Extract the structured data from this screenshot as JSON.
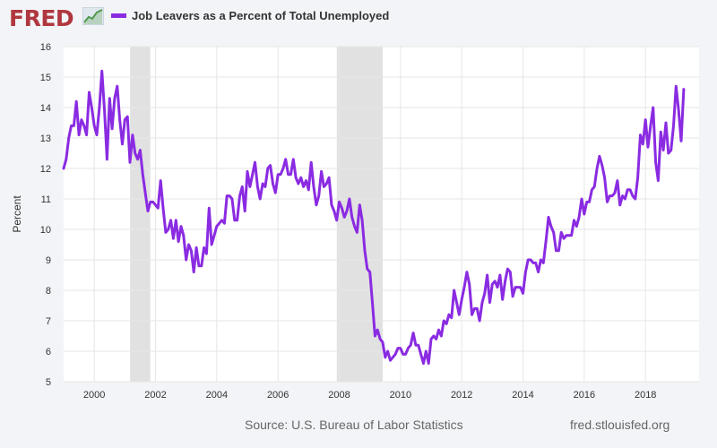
{
  "brand": {
    "logo_text": "FRED"
  },
  "colors": {
    "series": "#8a2be2",
    "recession": "#e1e1e1",
    "grid": "#e6e6e6",
    "plot_bg": "#ffffff"
  },
  "footer": {
    "source": "Source: U.S. Bureau of Labor Statistics",
    "url": "fred.stlouisfed.org"
  },
  "chart_data": {
    "type": "line",
    "title": "Job Leavers as a Percent of Total Unemployed",
    "xlabel": "",
    "ylabel": "Percent",
    "xlim": [
      1999.0,
      2019.75
    ],
    "ylim": [
      5,
      16
    ],
    "x_ticks": [
      2000,
      2002,
      2004,
      2006,
      2008,
      2010,
      2012,
      2014,
      2016,
      2018
    ],
    "y_ticks": [
      5,
      6,
      7,
      8,
      9,
      10,
      11,
      12,
      13,
      14,
      15,
      16
    ],
    "grid": true,
    "recessions": [
      [
        2001.17,
        2001.83
      ],
      [
        2007.92,
        2009.42
      ]
    ],
    "series": [
      {
        "name": "Job Leavers as a Percent of Total Unemployed",
        "start_year": 1999.0,
        "step": 0.08333,
        "values": [
          12.0,
          12.3,
          13.0,
          13.4,
          13.4,
          14.2,
          13.1,
          13.6,
          13.4,
          13.1,
          14.5,
          14.0,
          13.4,
          13.1,
          14.0,
          15.2,
          13.9,
          12.3,
          14.3,
          13.3,
          14.3,
          14.7,
          13.6,
          12.8,
          13.6,
          13.7,
          12.2,
          13.1,
          12.5,
          12.3,
          12.6,
          11.8,
          11.2,
          10.6,
          10.9,
          10.9,
          10.8,
          10.7,
          11.6,
          10.7,
          9.9,
          10.0,
          10.3,
          9.7,
          10.3,
          9.6,
          10.1,
          9.8,
          9.0,
          9.5,
          9.3,
          8.6,
          9.4,
          8.8,
          8.8,
          9.4,
          9.2,
          10.7,
          9.5,
          9.8,
          10.1,
          10.2,
          10.3,
          10.2,
          11.1,
          11.1,
          11.0,
          10.3,
          10.3,
          11.1,
          11.4,
          10.6,
          11.9,
          11.4,
          11.8,
          12.2,
          11.4,
          11.0,
          11.5,
          11.4,
          12.0,
          12.1,
          11.5,
          11.2,
          11.8,
          11.8,
          12.0,
          12.3,
          11.8,
          11.8,
          12.3,
          11.7,
          11.5,
          11.7,
          11.4,
          11.6,
          11.3,
          12.2,
          11.4,
          10.8,
          11.1,
          11.9,
          11.4,
          11.5,
          11.7,
          10.8,
          10.6,
          10.3,
          10.9,
          10.7,
          10.4,
          10.6,
          11.0,
          10.4,
          10.1,
          9.9,
          10.8,
          10.3,
          9.3,
          8.7,
          8.6,
          7.6,
          6.5,
          6.7,
          6.4,
          6.3,
          5.8,
          6.0,
          5.7,
          5.8,
          5.9,
          6.1,
          6.1,
          5.9,
          5.9,
          6.1,
          6.2,
          6.6,
          6.2,
          6.2,
          5.9,
          5.6,
          6.0,
          5.6,
          6.4,
          6.5,
          6.4,
          6.7,
          6.5,
          7.0,
          6.9,
          7.2,
          7.1,
          8.0,
          7.6,
          7.2,
          7.7,
          8.1,
          8.6,
          8.2,
          7.2,
          7.4,
          7.4,
          7.0,
          7.6,
          7.9,
          8.5,
          7.6,
          8.2,
          8.3,
          8.1,
          8.5,
          7.7,
          8.3,
          8.7,
          8.6,
          7.8,
          8.1,
          8.1,
          8.1,
          7.9,
          8.6,
          9.0,
          9.0,
          8.9,
          8.9,
          8.6,
          9.0,
          8.9,
          9.6,
          10.4,
          10.1,
          9.9,
          9.3,
          9.3,
          9.9,
          9.7,
          9.8,
          9.8,
          9.8,
          10.3,
          10.1,
          10.4,
          11.0,
          10.5,
          10.9,
          10.9,
          11.3,
          11.4,
          12.0,
          12.4,
          12.1,
          11.7,
          10.9,
          11.1,
          11.1,
          11.2,
          11.6,
          10.8,
          11.1,
          11.0,
          11.3,
          11.3,
          11.1,
          11.0,
          11.7,
          13.1,
          12.8,
          13.6,
          12.7,
          13.4,
          14.0,
          12.2,
          11.6,
          13.2,
          12.6,
          13.5,
          12.5,
          12.6,
          13.4,
          14.7,
          13.9,
          12.9,
          14.6
        ]
      }
    ]
  }
}
